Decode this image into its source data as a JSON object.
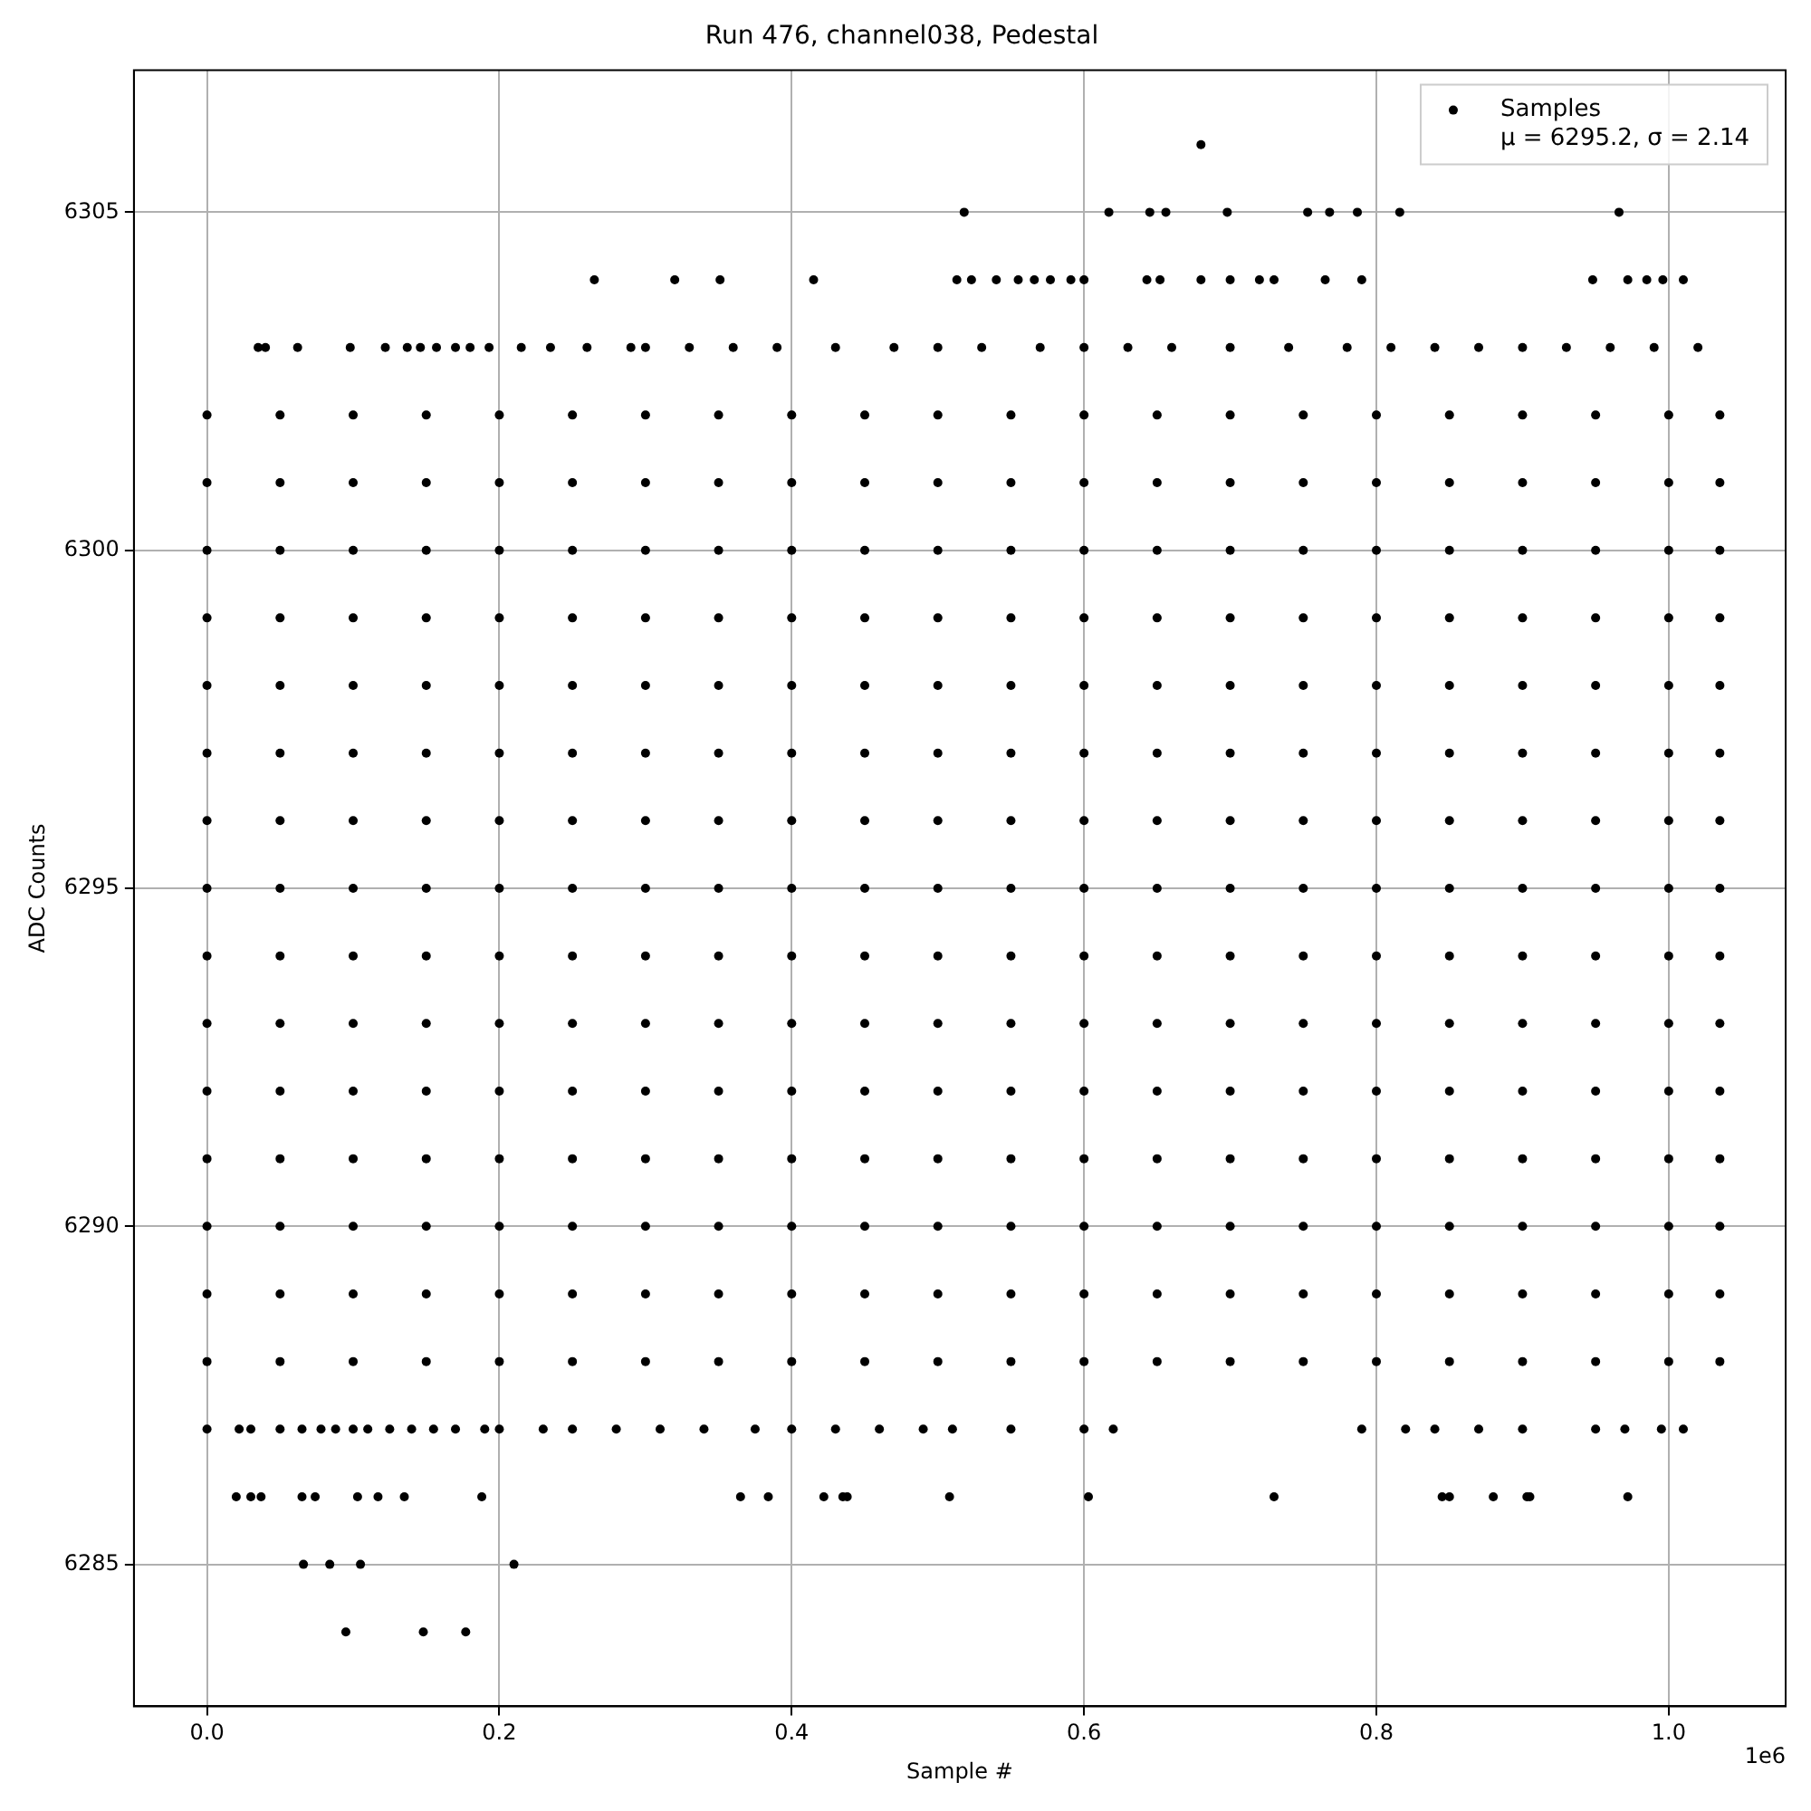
{
  "chart_data": {
    "type": "scatter",
    "title": "Run 476, channel038, Pedestal",
    "xlabel": "Sample #",
    "ylabel": "ADC Counts",
    "annotations": [
      "1e6"
    ],
    "xlim": [
      -0.05,
      1.08
    ],
    "xticks": [
      {
        "value": 0,
        "label": "0.0"
      },
      0.2,
      0.4,
      0.6,
      0.8,
      {
        "value": 1,
        "label": "1.0"
      }
    ],
    "ylim": [
      6282.9,
      6307.1
    ],
    "yticks": [
      6285,
      6290,
      6295,
      6300,
      6305
    ],
    "grid": true,
    "legend": "top right",
    "marker": "circle",
    "series": [
      {
        "name": "Samples\nμ = 6295.2, σ = 2.14",
        "color": "#000000",
        "x": [
          0,
          0.05,
          0.1,
          0.15,
          0.2,
          0.25,
          0.3,
          0.35,
          0.4,
          0.45,
          0.5,
          0.55,
          0.6,
          0.65,
          0.7,
          0.75,
          0.8,
          0.85,
          0.9,
          0.95,
          1,
          1.035,
          0,
          0.05,
          0.1,
          0.15,
          0.2,
          0.25,
          0.3,
          0.35,
          0.4,
          0.45,
          0.5,
          0.55,
          0.6,
          0.65,
          0.7,
          0.75,
          0.8,
          0.85,
          0.9,
          0.95,
          1,
          1.035,
          0,
          0.05,
          0.1,
          0.15,
          0.2,
          0.25,
          0.3,
          0.35,
          0.4,
          0.45,
          0.5,
          0.55,
          0.6,
          0.65,
          0.7,
          0.75,
          0.8,
          0.85,
          0.9,
          0.95,
          1,
          1.035,
          0,
          0.05,
          0.1,
          0.15,
          0.2,
          0.25,
          0.3,
          0.35,
          0.4,
          0.45,
          0.5,
          0.55,
          0.6,
          0.65,
          0.7,
          0.75,
          0.8,
          0.85,
          0.9,
          0.95,
          1,
          1.035,
          0,
          0.05,
          0.1,
          0.15,
          0.2,
          0.25,
          0.3,
          0.35,
          0.4,
          0.45,
          0.5,
          0.55,
          0.6,
          0.65,
          0.7,
          0.75,
          0.8,
          0.85,
          0.9,
          0.95,
          1,
          1.035,
          0,
          0.05,
          0.1,
          0.15,
          0.2,
          0.25,
          0.3,
          0.35,
          0.4,
          0.45,
          0.5,
          0.55,
          0.6,
          0.65,
          0.7,
          0.75,
          0.8,
          0.85,
          0.9,
          0.95,
          1,
          1.035,
          0,
          0.05,
          0.1,
          0.15,
          0.2,
          0.25,
          0.3,
          0.35,
          0.4,
          0.45,
          0.5,
          0.55,
          0.6,
          0.65,
          0.7,
          0.75,
          0.8,
          0.85,
          0.9,
          0.95,
          1,
          1.035,
          0,
          0.05,
          0.1,
          0.15,
          0.2,
          0.25,
          0.3,
          0.35,
          0.4,
          0.45,
          0.5,
          0.55,
          0.6,
          0.65,
          0.7,
          0.75,
          0.8,
          0.85,
          0.9,
          0.95,
          1,
          1.035,
          0,
          0.05,
          0.1,
          0.15,
          0.2,
          0.25,
          0.3,
          0.35,
          0.4,
          0.45,
          0.5,
          0.55,
          0.6,
          0.65,
          0.7,
          0.75,
          0.8,
          0.85,
          0.9,
          0.95,
          1,
          1.035,
          0,
          0.05,
          0.1,
          0.15,
          0.2,
          0.25,
          0.3,
          0.35,
          0.4,
          0.45,
          0.5,
          0.55,
          0.6,
          0.65,
          0.7,
          0.75,
          0.8,
          0.85,
          0.9,
          0.95,
          1,
          1.035,
          0,
          0.05,
          0.1,
          0.15,
          0.2,
          0.25,
          0.3,
          0.35,
          0.4,
          0.45,
          0.5,
          0.55,
          0.6,
          0.65,
          0.7,
          0.75,
          0.8,
          0.85,
          0.9,
          0.95,
          1,
          1.035,
          0,
          0.05,
          0.1,
          0.15,
          0.2,
          0.25,
          0.3,
          0.35,
          0.4,
          0.45,
          0.5,
          0.55,
          0.6,
          0.65,
          0.7,
          0.75,
          0.8,
          0.85,
          0.9,
          0.95,
          1,
          1.035,
          0,
          0.05,
          0.1,
          0.15,
          0.2,
          0.25,
          0.3,
          0.35,
          0.4,
          0.45,
          0.5,
          0.55,
          0.6,
          0.65,
          0.7,
          0.75,
          0.8,
          0.85,
          0.9,
          0.95,
          1,
          1.035,
          0,
          0.05,
          0.1,
          0.15,
          0.2,
          0.25,
          0.3,
          0.35,
          0.4,
          0.45,
          0.5,
          0.55,
          0.6,
          0.65,
          0.7,
          0.75,
          0.8,
          0.85,
          0.9,
          0.95,
          1,
          1.035,
          0,
          0.05,
          0.1,
          0.15,
          0.2,
          0.25,
          0.3,
          0.35,
          0.4,
          0.45,
          0.5,
          0.55,
          0.6,
          0.65,
          0.7,
          0.75,
          0.8,
          0.85,
          0.9,
          0.95,
          1,
          1.035,
          0.68,
          0.518,
          0.617,
          0.645,
          0.656,
          0.698,
          0.753,
          0.768,
          0.787,
          0.816,
          0.966,
          0.265,
          0.32,
          0.351,
          0.415,
          0.513,
          0.523,
          0.54,
          0.555,
          0.566,
          0.577,
          0.591,
          0.6,
          0.643,
          0.652,
          0.68,
          0.7,
          0.72,
          0.73,
          0.765,
          0.79,
          0.948,
          0.972,
          0.985,
          0.996,
          1.01,
          0.035,
          0.04,
          0.062,
          0.098,
          0.122,
          0.137,
          0.146,
          0.157,
          0.17,
          0.18,
          0.193,
          0.215,
          0.235,
          0.26,
          0.29,
          0.3,
          0.33,
          0.36,
          0.39,
          0.43,
          0.47,
          0.5,
          0.53,
          0.57,
          0.6,
          0.63,
          0.66,
          0.7,
          0.74,
          0.78,
          0.81,
          0.84,
          0.87,
          0.9,
          0.93,
          0.96,
          0.99,
          1.02,
          0,
          0.022,
          0.03,
          0.05,
          0.065,
          0.078,
          0.088,
          0.1,
          0.11,
          0.125,
          0.14,
          0.155,
          0.17,
          0.19,
          0.2,
          0.23,
          0.25,
          0.28,
          0.31,
          0.34,
          0.375,
          0.4,
          0.43,
          0.46,
          0.49,
          0.51,
          0.55,
          0.6,
          0.62,
          0.79,
          0.82,
          0.84,
          0.87,
          0.9,
          0.95,
          0.97,
          0.995,
          1.01,
          0.02,
          0.03,
          0.037,
          0.065,
          0.074,
          0.103,
          0.117,
          0.135,
          0.188,
          0.365,
          0.384,
          0.422,
          0.435,
          0.438,
          0.508,
          0.603,
          0.73,
          0.845,
          0.85,
          0.88,
          0.903,
          0.905,
          0.972,
          0.066,
          0.084,
          0.105,
          0.21,
          0.095,
          0.148,
          0.177
        ],
        "values": [
          6288,
          6288,
          6288,
          6288,
          6288,
          6288,
          6288,
          6288,
          6288,
          6288,
          6288,
          6288,
          6288,
          6288,
          6288,
          6288,
          6288,
          6288,
          6288,
          6288,
          6288,
          6288,
          6289,
          6289,
          6289,
          6289,
          6289,
          6289,
          6289,
          6289,
          6289,
          6289,
          6289,
          6289,
          6289,
          6289,
          6289,
          6289,
          6289,
          6289,
          6289,
          6289,
          6289,
          6289,
          6290,
          6290,
          6290,
          6290,
          6290,
          6290,
          6290,
          6290,
          6290,
          6290,
          6290,
          6290,
          6290,
          6290,
          6290,
          6290,
          6290,
          6290,
          6290,
          6290,
          6290,
          6290,
          6291,
          6291,
          6291,
          6291,
          6291,
          6291,
          6291,
          6291,
          6291,
          6291,
          6291,
          6291,
          6291,
          6291,
          6291,
          6291,
          6291,
          6291,
          6291,
          6291,
          6291,
          6291,
          6292,
          6292,
          6292,
          6292,
          6292,
          6292,
          6292,
          6292,
          6292,
          6292,
          6292,
          6292,
          6292,
          6292,
          6292,
          6292,
          6292,
          6292,
          6292,
          6292,
          6292,
          6292,
          6293,
          6293,
          6293,
          6293,
          6293,
          6293,
          6293,
          6293,
          6293,
          6293,
          6293,
          6293,
          6293,
          6293,
          6293,
          6293,
          6293,
          6293,
          6293,
          6293,
          6293,
          6293,
          6294,
          6294,
          6294,
          6294,
          6294,
          6294,
          6294,
          6294,
          6294,
          6294,
          6294,
          6294,
          6294,
          6294,
          6294,
          6294,
          6294,
          6294,
          6294,
          6294,
          6294,
          6294,
          6295,
          6295,
          6295,
          6295,
          6295,
          6295,
          6295,
          6295,
          6295,
          6295,
          6295,
          6295,
          6295,
          6295,
          6295,
          6295,
          6295,
          6295,
          6295,
          6295,
          6295,
          6295,
          6296,
          6296,
          6296,
          6296,
          6296,
          6296,
          6296,
          6296,
          6296,
          6296,
          6296,
          6296,
          6296,
          6296,
          6296,
          6296,
          6296,
          6296,
          6296,
          6296,
          6296,
          6296,
          6297,
          6297,
          6297,
          6297,
          6297,
          6297,
          6297,
          6297,
          6297,
          6297,
          6297,
          6297,
          6297,
          6297,
          6297,
          6297,
          6297,
          6297,
          6297,
          6297,
          6297,
          6297,
          6298,
          6298,
          6298,
          6298,
          6298,
          6298,
          6298,
          6298,
          6298,
          6298,
          6298,
          6298,
          6298,
          6298,
          6298,
          6298,
          6298,
          6298,
          6298,
          6298,
          6298,
          6298,
          6299,
          6299,
          6299,
          6299,
          6299,
          6299,
          6299,
          6299,
          6299,
          6299,
          6299,
          6299,
          6299,
          6299,
          6299,
          6299,
          6299,
          6299,
          6299,
          6299,
          6299,
          6299,
          6300,
          6300,
          6300,
          6300,
          6300,
          6300,
          6300,
          6300,
          6300,
          6300,
          6300,
          6300,
          6300,
          6300,
          6300,
          6300,
          6300,
          6300,
          6300,
          6300,
          6300,
          6300,
          6301,
          6301,
          6301,
          6301,
          6301,
          6301,
          6301,
          6301,
          6301,
          6301,
          6301,
          6301,
          6301,
          6301,
          6301,
          6301,
          6301,
          6301,
          6301,
          6301,
          6301,
          6301,
          6302,
          6302,
          6302,
          6302,
          6302,
          6302,
          6302,
          6302,
          6302,
          6302,
          6302,
          6302,
          6302,
          6302,
          6302,
          6302,
          6302,
          6302,
          6302,
          6302,
          6302,
          6302,
          6306,
          6305,
          6305,
          6305,
          6305,
          6305,
          6305,
          6305,
          6305,
          6305,
          6305,
          6304,
          6304,
          6304,
          6304,
          6304,
          6304,
          6304,
          6304,
          6304,
          6304,
          6304,
          6304,
          6304,
          6304,
          6304,
          6304,
          6304,
          6304,
          6304,
          6304,
          6304,
          6304,
          6304,
          6304,
          6304,
          6303,
          6303,
          6303,
          6303,
          6303,
          6303,
          6303,
          6303,
          6303,
          6303,
          6303,
          6303,
          6303,
          6303,
          6303,
          6303,
          6303,
          6303,
          6303,
          6303,
          6303,
          6303,
          6303,
          6303,
          6303,
          6303,
          6303,
          6303,
          6303,
          6303,
          6303,
          6303,
          6303,
          6303,
          6303,
          6303,
          6303,
          6303,
          6287,
          6287,
          6287,
          6287,
          6287,
          6287,
          6287,
          6287,
          6287,
          6287,
          6287,
          6287,
          6287,
          6287,
          6287,
          6287,
          6287,
          6287,
          6287,
          6287,
          6287,
          6287,
          6287,
          6287,
          6287,
          6287,
          6287,
          6287,
          6287,
          6287,
          6287,
          6287,
          6287,
          6287,
          6287,
          6287,
          6287,
          6287,
          6286,
          6286,
          6286,
          6286,
          6286,
          6286,
          6286,
          6286,
          6286,
          6286,
          6286,
          6286,
          6286,
          6286,
          6286,
          6286,
          6286,
          6286,
          6286,
          6286,
          6286,
          6286,
          6286,
          6285,
          6285,
          6285,
          6285,
          6284,
          6284,
          6284
        ]
      }
    ]
  }
}
